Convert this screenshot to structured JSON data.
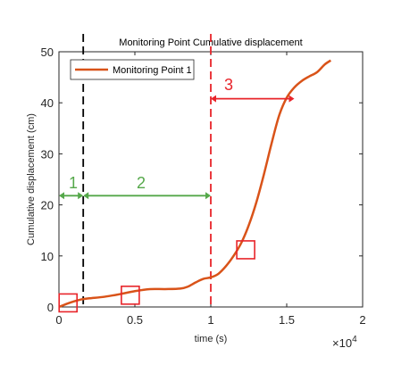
{
  "chart_data": {
    "type": "line",
    "title": "Monitoring Point Cumulative displacement",
    "xlabel": "time (s)",
    "ylabel": "Cumulative displacement (cm)",
    "x_multiplier_label": "×10",
    "x_multiplier_exp": "4",
    "xlim": [
      0,
      20000
    ],
    "ylim": [
      0,
      50
    ],
    "xticks": [
      0,
      5000,
      10000,
      15000,
      20000
    ],
    "xtick_labels": [
      "0",
      "0.5",
      "1",
      "1.5",
      "2"
    ],
    "yticks": [
      0,
      10,
      20,
      30,
      40,
      50
    ],
    "ytick_labels": [
      "0",
      "10",
      "20",
      "30",
      "40",
      "50"
    ],
    "grid": false,
    "legend_position": "top-left",
    "series": [
      {
        "name": "Monitoring Point 1",
        "color": "#d95319",
        "x": [
          0,
          500,
          1000,
          1500,
          2000,
          3000,
          4000,
          5000,
          6000,
          7000,
          8000,
          8500,
          9000,
          9500,
          10000,
          10500,
          11000,
          11500,
          12000,
          12500,
          13000,
          13500,
          14000,
          14500,
          15000,
          15500,
          16000,
          16500,
          17000,
          17500,
          17900
        ],
        "y": [
          0,
          0.6,
          1.1,
          1.5,
          1.7,
          2.0,
          2.5,
          3.1,
          3.5,
          3.5,
          3.6,
          4.0,
          4.8,
          5.5,
          5.8,
          6.5,
          8.0,
          10.0,
          12.5,
          16.0,
          20.5,
          26.0,
          32.0,
          37.5,
          41.0,
          43.0,
          44.3,
          45.2,
          46.0,
          47.5,
          48.3
        ]
      }
    ],
    "vlines": [
      {
        "x": 1600,
        "color": "#000000",
        "style": "dashed"
      },
      {
        "x": 10000,
        "color": "#e8242a",
        "style": "dashed"
      }
    ],
    "stage_labels": [
      {
        "text": "1",
        "color": "#55a84a"
      },
      {
        "text": "2",
        "color": "#55a84a"
      },
      {
        "text": "3",
        "color": "#e8242a"
      }
    ],
    "stage_arrows": [
      {
        "x_from": 0,
        "x_to": 1600,
        "y": 21.8,
        "color": "#55a84a"
      },
      {
        "x_from": 1600,
        "x_to": 10000,
        "y": 21.8,
        "color": "#55a84a"
      },
      {
        "x_from": 10000,
        "x_to": 15500,
        "y": 40.8,
        "color": "#e8242a"
      }
    ],
    "highlight_boxes": [
      {
        "x": 600,
        "y": 0.8,
        "color": "#e8242a"
      },
      {
        "x": 4700,
        "y": 2.3,
        "color": "#e8242a"
      },
      {
        "x": 12300,
        "y": 11.2,
        "color": "#e8242a"
      }
    ],
    "axis_color": "#262626"
  }
}
